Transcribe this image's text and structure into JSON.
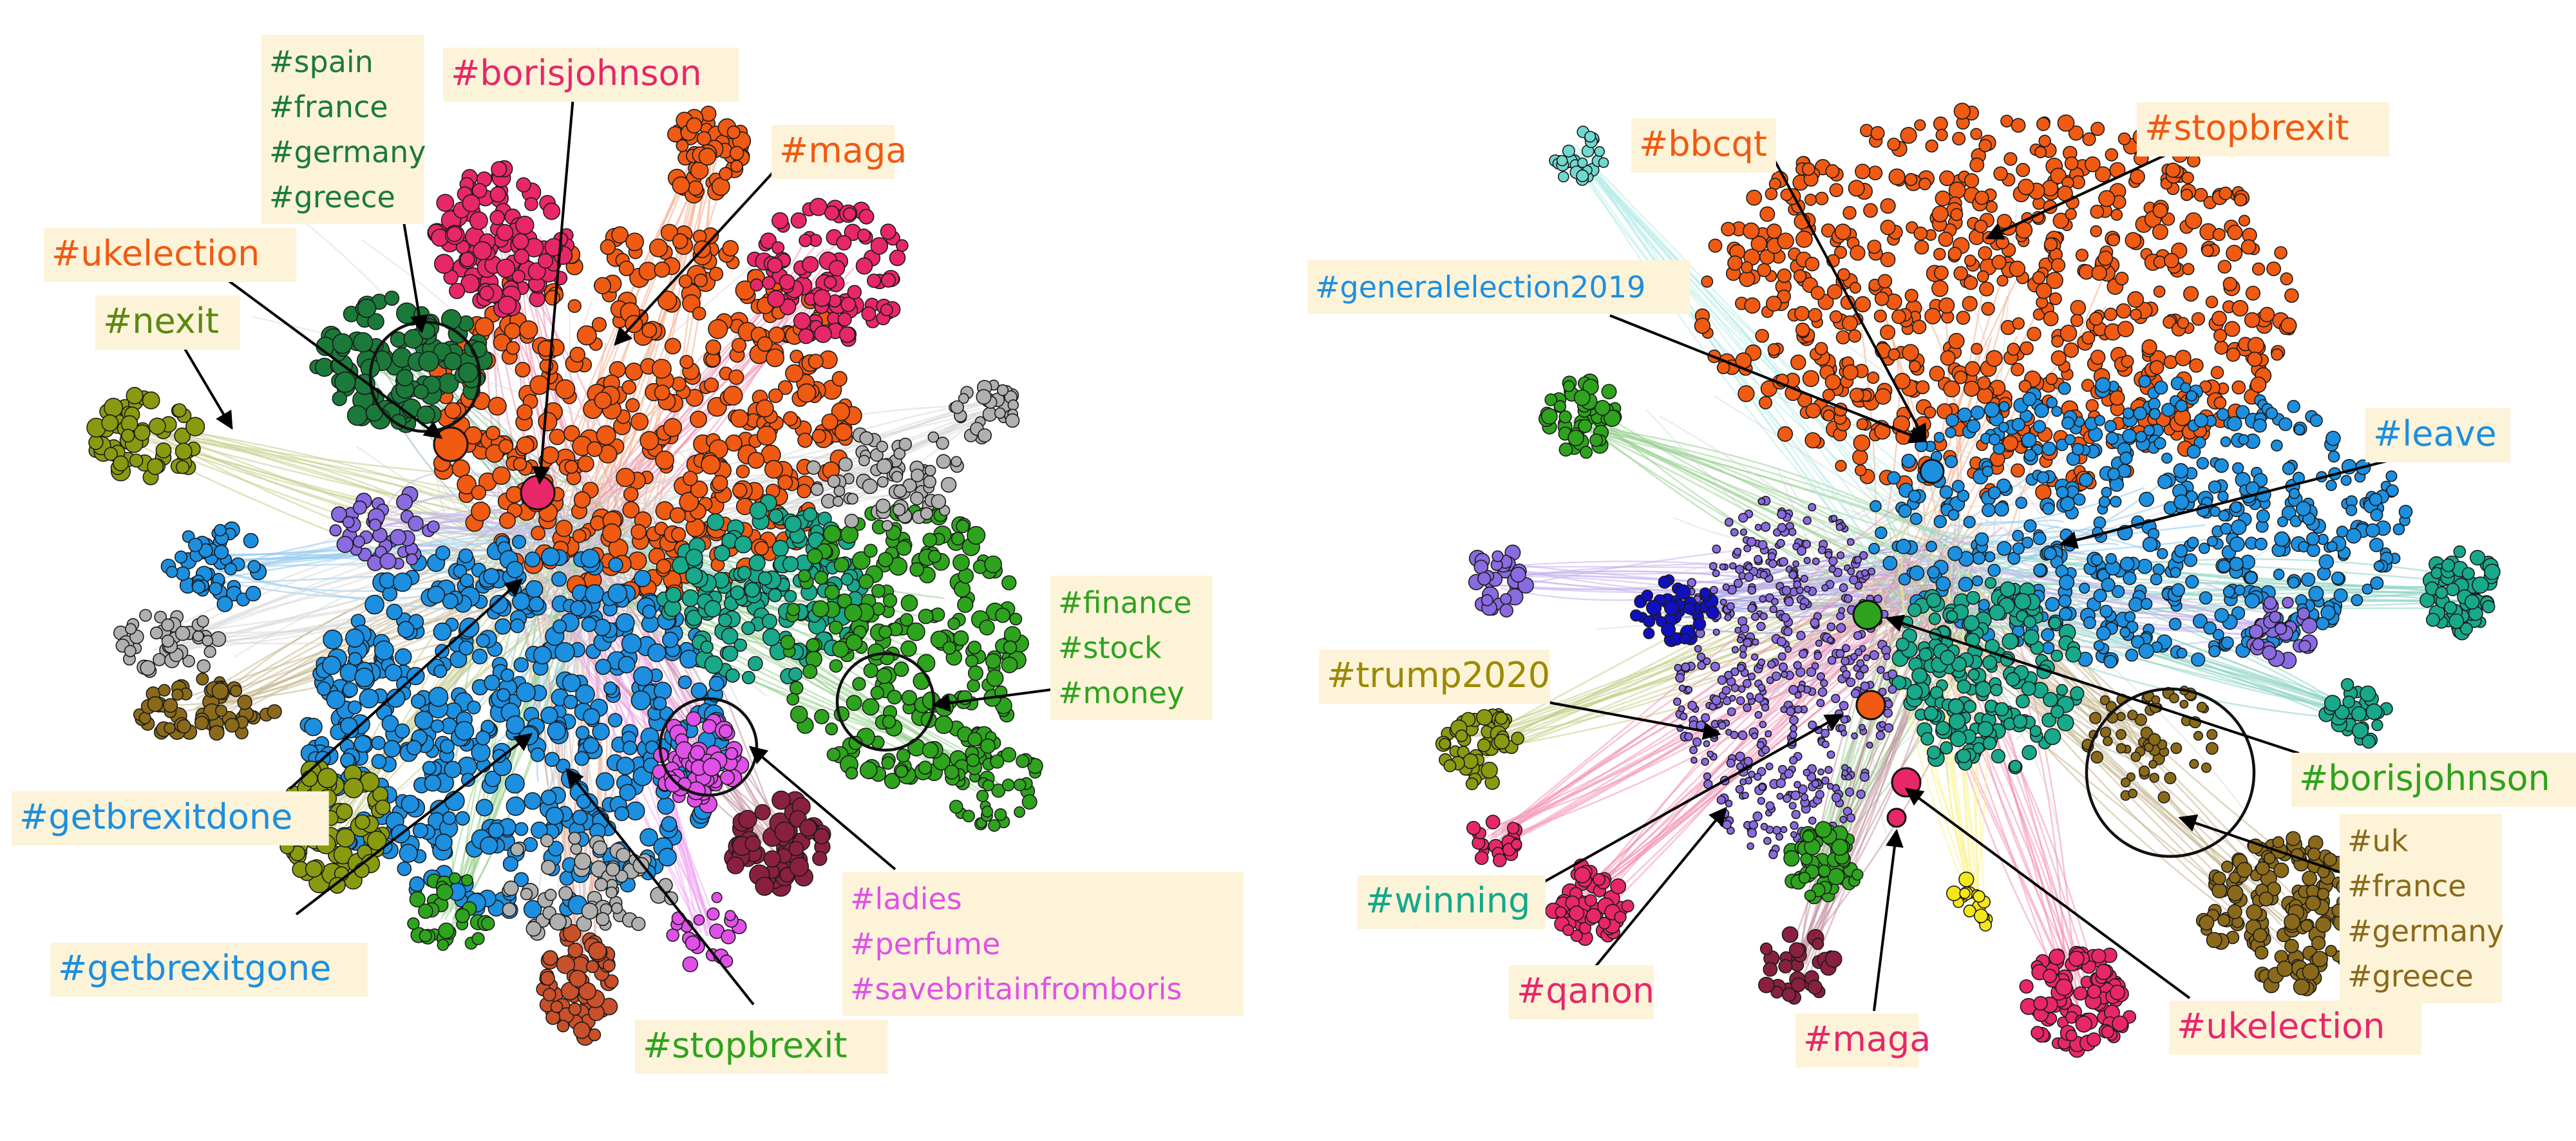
{
  "panels": [
    {
      "id": "left",
      "labels": [
        {
          "key": "spain_group",
          "lines": [
            "#spain",
            "#france",
            "#germany",
            "#greece"
          ],
          "color": "#1b7a3a"
        },
        {
          "key": "borisjohnson",
          "lines": [
            "#borisjohnson"
          ],
          "color": "#e8276a"
        },
        {
          "key": "maga",
          "lines": [
            "#maga"
          ],
          "color": "#f05a12"
        },
        {
          "key": "ukelection",
          "lines": [
            "#ukelection"
          ],
          "color": "#f05a12"
        },
        {
          "key": "nexit",
          "lines": [
            "#nexit"
          ],
          "color": "#5a8a10"
        },
        {
          "key": "finance_group",
          "lines": [
            "#finance",
            "#stock",
            "#money"
          ],
          "color": "#2ea31d"
        },
        {
          "key": "getbrexitdone",
          "lines": [
            "#getbrexitdone"
          ],
          "color": "#1c8fe0"
        },
        {
          "key": "getbrexitgone",
          "lines": [
            "#getbrexitgone"
          ],
          "color": "#1c8fe0"
        },
        {
          "key": "ladies_group",
          "lines": [
            "#ladies",
            "#perfume",
            "#savebritainfromboris"
          ],
          "color": "#e050e8"
        },
        {
          "key": "stopbrexit",
          "lines": [
            "#stopbrexit"
          ],
          "color": "#2ea31d"
        }
      ]
    },
    {
      "id": "right",
      "labels": [
        {
          "key": "bbcqt",
          "lines": [
            "#bbcqt"
          ],
          "color": "#f05a12"
        },
        {
          "key": "stopbrexit",
          "lines": [
            "#stopbrexit"
          ],
          "color": "#f05a12"
        },
        {
          "key": "generalelection2019",
          "lines": [
            "#generalelection2019"
          ],
          "color": "#1c8fe0"
        },
        {
          "key": "leave",
          "lines": [
            "#leave"
          ],
          "color": "#1c8fe0"
        },
        {
          "key": "trump2020",
          "lines": [
            "#trump2020"
          ],
          "color": "#9a8a00"
        },
        {
          "key": "borisjohnson",
          "lines": [
            "#borisjohnson"
          ],
          "color": "#2ea31d"
        },
        {
          "key": "uk_group",
          "lines": [
            "#uk",
            "#france",
            "#germany",
            "#greece"
          ],
          "color": "#8a6a1a"
        },
        {
          "key": "winning",
          "lines": [
            "#winning"
          ],
          "color": "#14a88a"
        },
        {
          "key": "qanon",
          "lines": [
            "#qanon"
          ],
          "color": "#e8276a"
        },
        {
          "key": "maga",
          "lines": [
            "#maga"
          ],
          "color": "#e8276a"
        },
        {
          "key": "ukelection",
          "lines": [
            "#ukelection"
          ],
          "color": "#e8276a"
        }
      ]
    }
  ],
  "network_colors": {
    "orange": "#f05a12",
    "blue": "#1c8fe0",
    "pink": "#e8276a",
    "magenta": "#e050e8",
    "green": "#2ea31d",
    "darkgreen": "#1b7a3a",
    "olive": "#8a9a10",
    "teal": "#18a88a",
    "brown": "#8a6a1a",
    "gray": "#b0b0b0",
    "purple": "#8a6ae0",
    "maroon": "#8a2040",
    "navy": "#1010c0",
    "rust": "#c8502a"
  }
}
